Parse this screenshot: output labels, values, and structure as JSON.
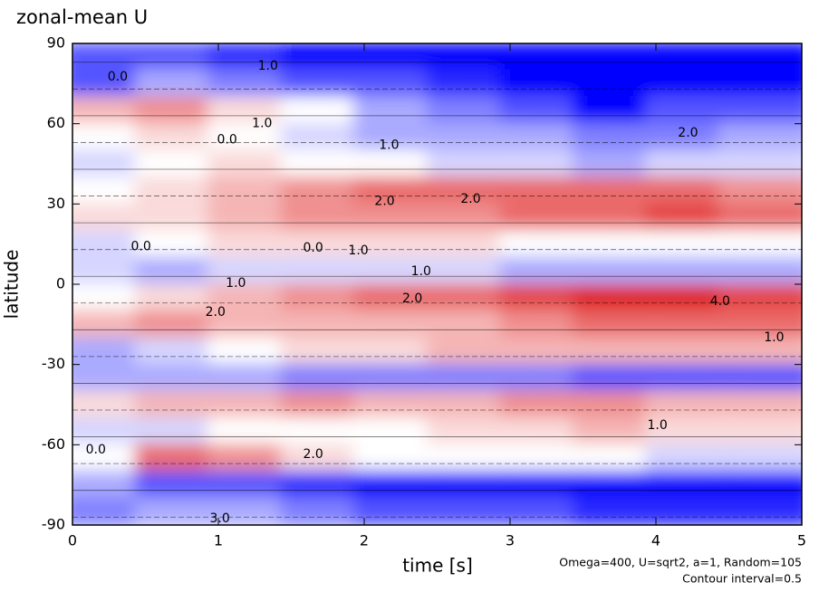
{
  "chart_data": {
    "type": "contour",
    "title": "zonal-mean U",
    "x_label": "time [s]",
    "y_label": "latitude",
    "annotations": [
      "Omega=400, U=sqrt2, a=1, Random=105",
      "Contour interval=0.5"
    ],
    "xlim": [
      0,
      5
    ],
    "ylim": [
      -90,
      90
    ],
    "xticks": [
      0,
      1,
      2,
      3,
      4,
      5
    ],
    "yticks": [
      -90,
      -60,
      -30,
      0,
      30,
      60,
      90
    ],
    "color_low": "#0000ff",
    "color_high": "#e02020",
    "x": [
      0.25,
      0.75,
      1.25,
      1.75,
      2.25,
      2.75,
      3.25,
      3.75,
      4.25,
      4.75
    ],
    "y": [
      85,
      75,
      65,
      55,
      45,
      35,
      25,
      15,
      5,
      -5,
      -15,
      -25,
      -35,
      -45,
      -55,
      -65,
      -75,
      -85
    ],
    "z": [
      [
        -2,
        -2,
        -2.5,
        -3,
        -3,
        -3,
        -3,
        -3,
        -3,
        -3
      ],
      [
        -2,
        -1,
        -1.5,
        -2,
        -2,
        -2.5,
        -3,
        -4,
        -4,
        -4
      ],
      [
        1,
        1.5,
        0.5,
        0,
        -1,
        -1.5,
        -2,
        -3,
        -2,
        -2
      ],
      [
        0,
        0.5,
        0,
        -0.5,
        -1,
        -1,
        -1,
        -1.5,
        -1.5,
        -1
      ],
      [
        -0.5,
        0,
        0.5,
        0,
        0,
        -0.5,
        -0.5,
        -1,
        -0.5,
        -0.5
      ],
      [
        0,
        0.5,
        1,
        1.5,
        2,
        2,
        2,
        2,
        2,
        1.5
      ],
      [
        0.5,
        0.5,
        1,
        1.5,
        1.5,
        1.5,
        2,
        2,
        2.5,
        2
      ],
      [
        -0.5,
        0,
        0.5,
        0.5,
        0.5,
        0.5,
        0,
        0,
        0,
        0
      ],
      [
        -0.5,
        -1,
        -0.5,
        -0.5,
        -0.5,
        -0.5,
        -1,
        -1,
        -1,
        -1
      ],
      [
        0,
        0.5,
        1,
        1.5,
        2,
        2,
        2.5,
        3,
        3,
        2.5
      ],
      [
        1,
        1.5,
        1,
        1,
        1,
        1,
        1.5,
        2,
        2,
        2
      ],
      [
        -1,
        -0.5,
        0,
        0.5,
        0.5,
        1,
        1,
        1,
        1,
        1
      ],
      [
        -1,
        -1,
        -1,
        -1.5,
        -1.5,
        -1.5,
        -1.5,
        -2,
        -2,
        -2
      ],
      [
        0.5,
        1,
        1,
        1.5,
        1,
        1,
        1.5,
        1.5,
        1,
        1
      ],
      [
        -0.5,
        -0.5,
        0,
        0,
        0,
        0.5,
        0.5,
        1,
        0.5,
        0.5
      ],
      [
        0,
        2,
        1.5,
        0.5,
        0,
        0,
        0,
        0,
        -0.5,
        -0.5
      ],
      [
        -1,
        -2,
        -2,
        -2.5,
        -3,
        -3.5,
        -4,
        -4,
        -4,
        -4
      ],
      [
        -1.5,
        -1,
        -1,
        -1.5,
        -2,
        -2,
        -2,
        -2.5,
        -2.5,
        -2.5
      ]
    ],
    "contour_labels": [
      {
        "x": 2.73,
        "y": 31.8,
        "value": 2,
        "label": "2.0"
      },
      {
        "x": 2.14,
        "y": 31,
        "value": 2,
        "label": "2.0"
      },
      {
        "x": 1.3,
        "y": 60,
        "value": 1,
        "label": "1.0"
      },
      {
        "x": 1.06,
        "y": 54,
        "value": 0,
        "label": "0.0"
      },
      {
        "x": 2.17,
        "y": 52,
        "value": 1,
        "label": "1.0"
      },
      {
        "x": 0.47,
        "y": 14,
        "value": 0,
        "label": "0.0"
      },
      {
        "x": 1.65,
        "y": 13.5,
        "value": 0,
        "label": "0.0"
      },
      {
        "x": 1.96,
        "y": 12.5,
        "value": 1,
        "label": "1.0"
      },
      {
        "x": 2.33,
        "y": -5.4,
        "value": 2,
        "label": "2.0"
      },
      {
        "x": 0.98,
        "y": -10.5,
        "value": 2,
        "label": "2.0"
      },
      {
        "x": 2.39,
        "y": 4.7,
        "value": 1,
        "label": "1.0"
      },
      {
        "x": 1.12,
        "y": 0.4,
        "value": 1,
        "label": "1.0"
      },
      {
        "x": 4.01,
        "y": -52.8,
        "value": 1,
        "label": "1.0"
      },
      {
        "x": 0.16,
        "y": -61.9,
        "value": 0,
        "label": "0.0"
      },
      {
        "x": 1.65,
        "y": -63.6,
        "value": 2,
        "label": "2.0"
      },
      {
        "x": 0.31,
        "y": 77.5,
        "value": 0,
        "label": "0.0"
      },
      {
        "x": 1.34,
        "y": 81.5,
        "value": 1,
        "label": "1.0"
      },
      {
        "x": 4.22,
        "y": 56.5,
        "value": 2,
        "label": "2.0"
      },
      {
        "x": 4.44,
        "y": -6.4,
        "value": 4,
        "label": "4.0"
      },
      {
        "x": 4.81,
        "y": -20,
        "value": 1,
        "label": "1.0"
      },
      {
        "x": 1.01,
        "y": -87.6,
        "value": 3,
        "label": "3.0"
      }
    ]
  }
}
